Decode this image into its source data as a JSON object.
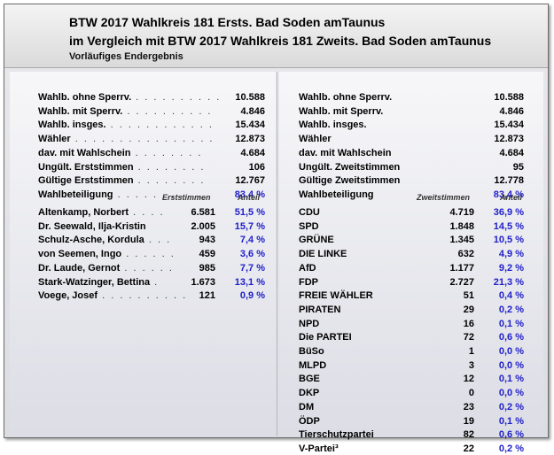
{
  "header": {
    "title1": "BTW 2017 Wahlkreis 181 Ersts. Bad Soden amTaunus",
    "title2": "im Vergleich mit BTW 2017 Wahlkreis 181 Zweits. Bad Soden amTaunus",
    "subtitle": "Vorläufiges Endergebnis"
  },
  "left": {
    "stats": [
      {
        "label": "Wahlb. ohne Sperrv.",
        "dots": " . . . . . . . . . . ",
        "value": "10.588"
      },
      {
        "label": "Wahlb. mit Sperrv.",
        "dots": " . . . . . . . . . . ",
        "value": "4.846"
      },
      {
        "label": "Wahlb. insges.",
        "dots": " . . . . . . . . . . . . ",
        "value": "15.434"
      },
      {
        "label": "Wähler",
        "dots": " . . . . . . . . . . . . . . . . ",
        "value": "12.873"
      },
      {
        "label": "dav. mit Wahlschein",
        "dots": " . . . . . . . . ",
        "value": "4.684"
      },
      {
        "label": "Ungült. Erststimmen",
        "dots": " . . . . . . . . ",
        "value": "106"
      },
      {
        "label": "Gültige Erststimmen",
        "dots": " . . . . . . . . ",
        "value": "12.767"
      },
      {
        "label": "Wahlbeteiligung",
        "dots": " . . . . . . . . . . ",
        "value": "83,4 %",
        "highlight": true
      }
    ],
    "col_votes": "Erststimmen",
    "col_share": "Anteil",
    "candidates": [
      {
        "name": "Altenkamp, Norbert",
        "dots": " . . . . ",
        "votes": "6.581",
        "share": "51,5 %"
      },
      {
        "name": "Dr. Seewald, Ilja-Kristin",
        "dots": "",
        "votes": "2.005",
        "share": "15,7 %"
      },
      {
        "name": "Schulz-Asche, Kordula",
        "dots": " . . . ",
        "votes": "943",
        "share": "7,4 %"
      },
      {
        "name": "von Seemen, Ingo",
        "dots": " . . . . . . ",
        "votes": "459",
        "share": "3,6 %"
      },
      {
        "name": "Dr. Laude, Gernot",
        "dots": " . . . . . . ",
        "votes": "985",
        "share": "7,7 %"
      },
      {
        "name": "Stark-Watzinger, Bettina",
        "dots": " . ",
        "votes": "1.673",
        "share": "13,1 %"
      },
      {
        "name": "Voege, Josef",
        "dots": " . . . . . . . . . . ",
        "votes": "121",
        "share": "0,9 %"
      }
    ]
  },
  "right": {
    "stats": [
      {
        "label": "Wahlb. ohne Sperrv.",
        "value": "10.588"
      },
      {
        "label": "Wahlb. mit Sperrv.",
        "value": "4.846"
      },
      {
        "label": "Wahlb. insges.",
        "value": "15.434"
      },
      {
        "label": "Wähler",
        "value": "12.873"
      },
      {
        "label": "dav. mit Wahlschein",
        "value": "4.684"
      },
      {
        "label": "Ungült. Zweitstimmen",
        "value": "95"
      },
      {
        "label": "Gültige Zweitstimmen",
        "value": "12.778"
      },
      {
        "label": "Wahlbeteiligung",
        "value": "83,4 %",
        "highlight": true
      }
    ],
    "col_votes": "Zweitstimmen",
    "col_share": "Anteil",
    "parties": [
      {
        "name": "CDU",
        "votes": "4.719",
        "share": "36,9 %"
      },
      {
        "name": "SPD",
        "votes": "1.848",
        "share": "14,5 %"
      },
      {
        "name": "GRÜNE",
        "votes": "1.345",
        "share": "10,5 %"
      },
      {
        "name": "DIE LINKE",
        "votes": "632",
        "share": "4,9 %"
      },
      {
        "name": "AfD",
        "votes": "1.177",
        "share": "9,2 %"
      },
      {
        "name": "FDP",
        "votes": "2.727",
        "share": "21,3 %"
      },
      {
        "name": "FREIE WÄHLER",
        "votes": "51",
        "share": "0,4 %"
      },
      {
        "name": "PIRATEN",
        "votes": "29",
        "share": "0,2 %"
      },
      {
        "name": "NPD",
        "votes": "16",
        "share": "0,1 %"
      },
      {
        "name": "Die PARTEI",
        "votes": "72",
        "share": "0,6 %"
      },
      {
        "name": "BüSo",
        "votes": "1",
        "share": "0,0 %"
      },
      {
        "name": "MLPD",
        "votes": "3",
        "share": "0,0 %"
      },
      {
        "name": "BGE",
        "votes": "12",
        "share": "0,1 %"
      },
      {
        "name": "DKP",
        "votes": "0",
        "share": "0,0 %"
      },
      {
        "name": "DM",
        "votes": "23",
        "share": "0,2 %"
      },
      {
        "name": "ÖDP",
        "votes": "19",
        "share": "0,1 %"
      },
      {
        "name": "Tierschutzpartei",
        "votes": "82",
        "share": "0,6 %"
      },
      {
        "name": "V-Partei³",
        "votes": "22",
        "share": "0,2 %"
      }
    ]
  },
  "colors": {
    "highlight": "#2020c8"
  }
}
